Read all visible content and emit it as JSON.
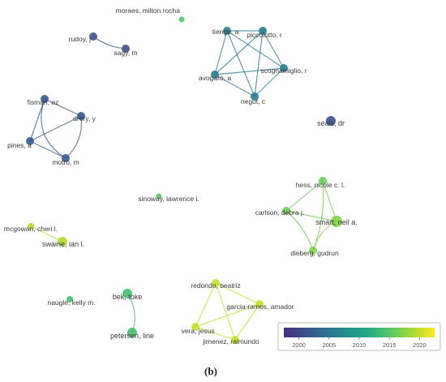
{
  "caption": "(b)",
  "color_scale": {
    "min": 1997.5,
    "max": 2022.5,
    "ticks": [
      2000,
      2005,
      2010,
      2015,
      2020
    ],
    "stops": [
      "#472f7d",
      "#3b528b",
      "#2c728e",
      "#21908d",
      "#27ad81",
      "#5cc863",
      "#aadc32",
      "#fde725"
    ]
  },
  "network": {
    "nodes": [
      {
        "id": "moraes",
        "label": "moraes, milton rocha",
        "year": 2015
      },
      {
        "id": "rudoy",
        "label": "rudoy, j",
        "year": 2001
      },
      {
        "id": "sagy",
        "label": "sagy, m",
        "year": 2001
      },
      {
        "id": "tiengo",
        "label": "tiengo, a",
        "year": 2006
      },
      {
        "id": "piccolotto",
        "label": "piccolotto, r",
        "year": 2006
      },
      {
        "id": "scognamiglio",
        "label": "scognamiglio, r",
        "year": 2006
      },
      {
        "id": "avogaro",
        "label": "avogaro, a",
        "year": 2006
      },
      {
        "id": "negut",
        "label": "negut, c",
        "year": 2006
      },
      {
        "id": "seals",
        "label": "seals, dr",
        "year": 2001
      },
      {
        "id": "fisman",
        "label": "fisman, ez",
        "year": 2002
      },
      {
        "id": "drory",
        "label": "drory, y",
        "year": 2002
      },
      {
        "id": "pines",
        "label": "pines, a",
        "year": 2002
      },
      {
        "id": "motro",
        "label": "motro, m",
        "year": 2002
      },
      {
        "id": "hess",
        "label": "hess, nicole c. l.",
        "year": 2016
      },
      {
        "id": "carlson",
        "label": "carlson, debra j.",
        "year": 2016
      },
      {
        "id": "smart",
        "label": "smart, neil a.",
        "year": 2017
      },
      {
        "id": "dieberg",
        "label": "dieberg, gudrun",
        "year": 2017
      },
      {
        "id": "sinoway",
        "label": "sinoway, lawrence i.",
        "year": 2015
      },
      {
        "id": "mcgowan",
        "label": "mcgowan, cheri l.",
        "year": 2019
      },
      {
        "id": "swaine",
        "label": "swaine, ian l.",
        "year": 2019
      },
      {
        "id": "naugle",
        "label": "naugle, kelly m.",
        "year": 2014
      },
      {
        "id": "bek",
        "label": "bek, toke",
        "year": 2014
      },
      {
        "id": "petersen",
        "label": "petersen, line",
        "year": 2014
      },
      {
        "id": "redondo",
        "label": "redondo, beatriz",
        "year": 2020
      },
      {
        "id": "garcia",
        "label": "garcia-ramos, amador",
        "year": 2020
      },
      {
        "id": "vera",
        "label": "vera, jesus",
        "year": 2020
      },
      {
        "id": "jimenez",
        "label": "jimenez, raimundo",
        "year": 2020
      }
    ],
    "links": [
      [
        "rudoy",
        "sagy"
      ],
      [
        "tiengo",
        "piccolotto"
      ],
      [
        "tiengo",
        "scognamiglio"
      ],
      [
        "tiengo",
        "avogaro"
      ],
      [
        "tiengo",
        "negut"
      ],
      [
        "piccolotto",
        "scognamiglio"
      ],
      [
        "piccolotto",
        "avogaro"
      ],
      [
        "piccolotto",
        "negut"
      ],
      [
        "scognamiglio",
        "avogaro"
      ],
      [
        "scognamiglio",
        "negut"
      ],
      [
        "avogaro",
        "negut"
      ],
      [
        "fisman",
        "drory"
      ],
      [
        "fisman",
        "pines"
      ],
      [
        "fisman",
        "motro"
      ],
      [
        "drory",
        "pines"
      ],
      [
        "drory",
        "motro"
      ],
      [
        "pines",
        "motro"
      ],
      [
        "hess",
        "carlson"
      ],
      [
        "hess",
        "smart"
      ],
      [
        "hess",
        "dieberg"
      ],
      [
        "carlson",
        "smart"
      ],
      [
        "carlson",
        "dieberg"
      ],
      [
        "smart",
        "dieberg"
      ],
      [
        "mcgowan",
        "swaine"
      ],
      [
        "bek",
        "petersen"
      ],
      [
        "redondo",
        "garcia"
      ],
      [
        "redondo",
        "vera"
      ],
      [
        "redondo",
        "jimenez"
      ],
      [
        "garcia",
        "vera"
      ],
      [
        "garcia",
        "jimenez"
      ],
      [
        "vera",
        "jimenez"
      ]
    ]
  }
}
